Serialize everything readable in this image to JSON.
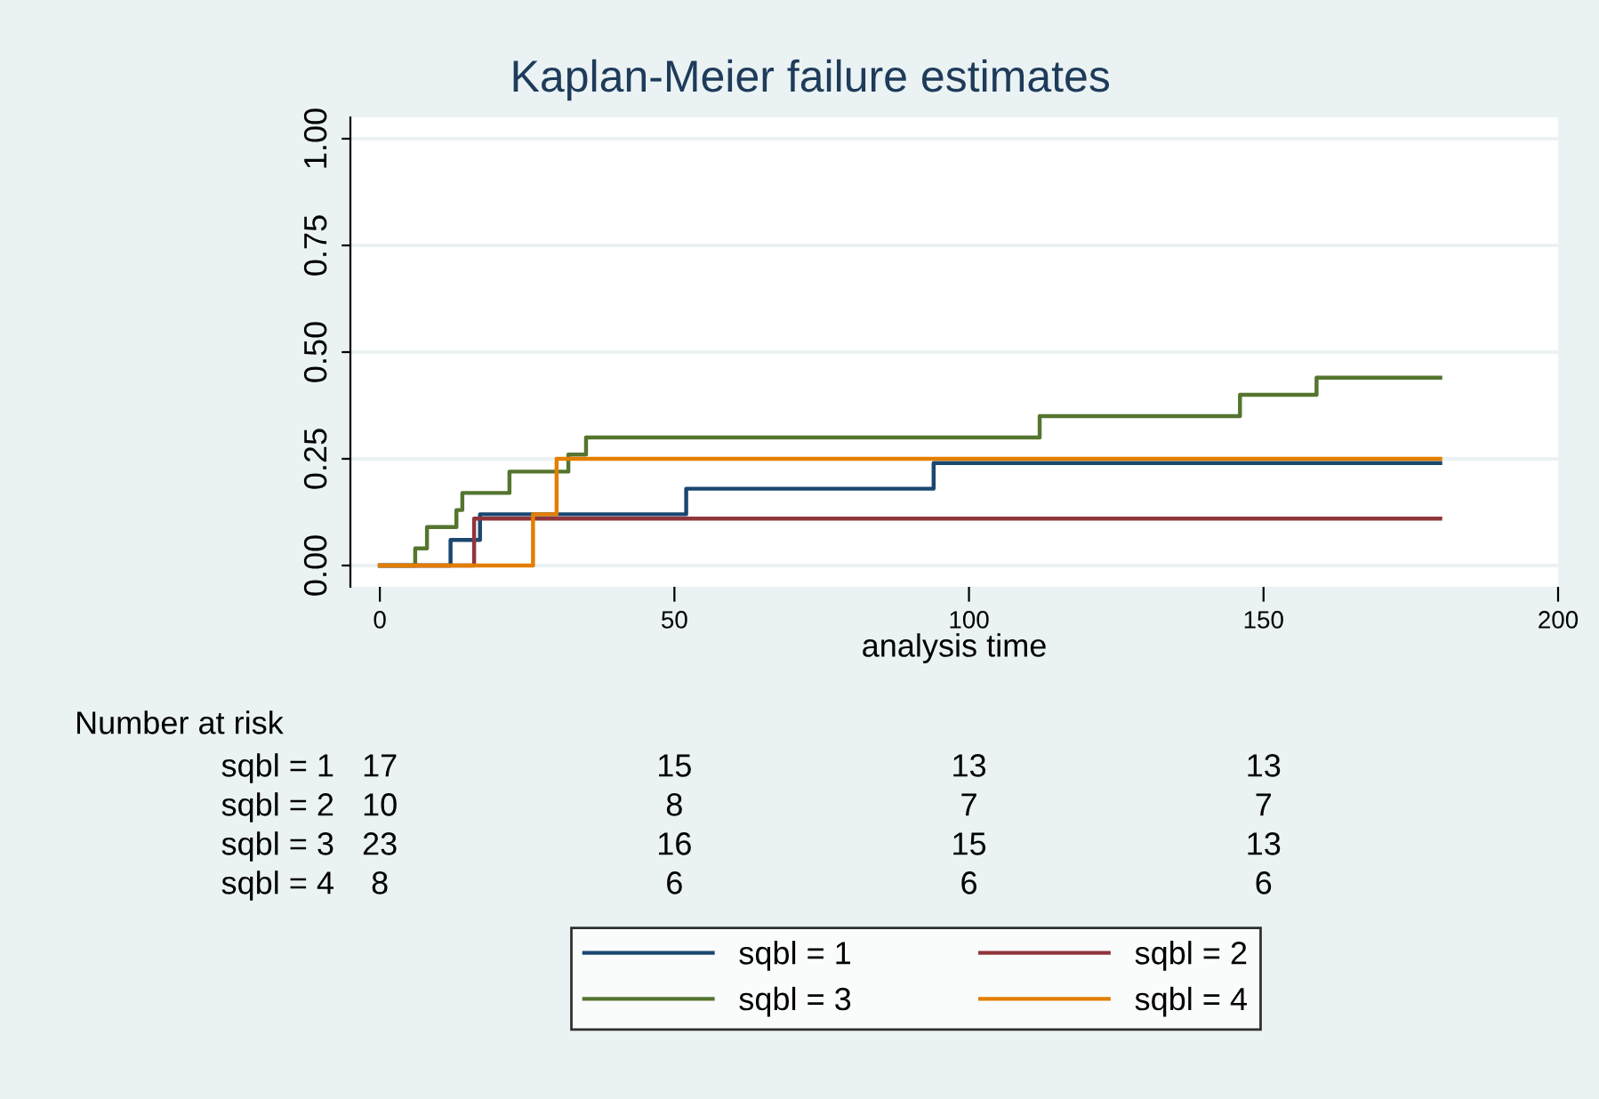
{
  "chart_data": {
    "type": "step",
    "title": "Kaplan-Meier failure estimates",
    "xlabel": "analysis time",
    "series": [
      {
        "name": "sqbl = 1",
        "color": "#1a476f",
        "x": [
          0,
          12,
          17,
          52,
          94,
          180
        ],
        "values": [
          0,
          0.06,
          0.12,
          0.18,
          0.24,
          0.24
        ]
      },
      {
        "name": "sqbl = 2",
        "color": "#90353b",
        "x": [
          0,
          16,
          180
        ],
        "values": [
          0,
          0.11,
          0.11
        ]
      },
      {
        "name": "sqbl = 3",
        "color": "#55752f",
        "x": [
          0,
          6,
          8,
          13,
          14,
          22,
          32,
          35,
          112,
          146,
          159,
          180
        ],
        "values": [
          0,
          0.04,
          0.09,
          0.13,
          0.17,
          0.22,
          0.26,
          0.3,
          0.35,
          0.4,
          0.44,
          0.44
        ]
      },
      {
        "name": "sqbl = 4",
        "color": "#e37e00",
        "x": [
          0,
          26,
          30,
          180
        ],
        "values": [
          0,
          0.12,
          0.25,
          0.25
        ]
      }
    ],
    "xlim": [
      -5,
      200
    ],
    "xticks": [
      0,
      50,
      100,
      150,
      200
    ],
    "ylim": [
      -0.05,
      1.05
    ],
    "yticks": [
      {
        "value": 0,
        "label": "0.00"
      },
      {
        "value": 0.25,
        "label": "0.25"
      },
      {
        "value": 0.5,
        "label": "0.50"
      },
      {
        "value": 0.75,
        "label": "0.75"
      },
      {
        "value": 1,
        "label": "1.00"
      }
    ],
    "grid": "y",
    "legend": "bottom",
    "annotations": [
      "Number at risk",
      "sqbl = 1",
      "17",
      "15",
      "13",
      "13",
      "sqbl = 2",
      "10",
      "8",
      "7",
      "7",
      "sqbl = 3",
      "23",
      "16",
      "15",
      "13",
      "sqbl = 4",
      "8",
      "6",
      "6",
      "6"
    ]
  }
}
